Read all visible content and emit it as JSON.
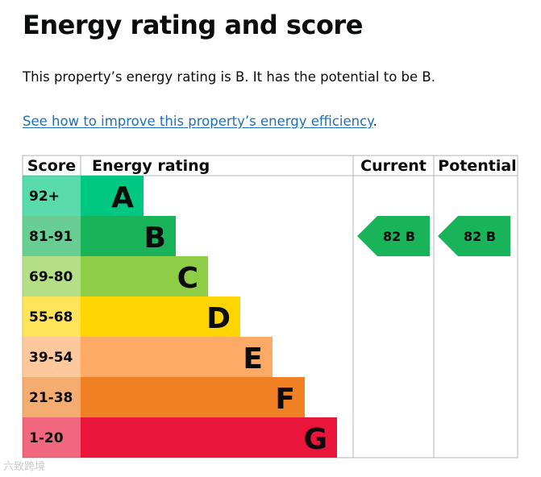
{
  "heading": "Energy rating and score",
  "summary": "This property’s energy rating is B. It has the potential to be B.",
  "improve_link": "See how to improve this property’s energy efficiency",
  "improve_suffix": ".",
  "watermark": "六致跨境",
  "chart_data": {
    "type": "bar",
    "columns": [
      "Score",
      "Energy rating",
      "Current",
      "Potential"
    ],
    "bands": [
      {
        "score": "92+",
        "rating": "A",
        "color": "#00c781"
      },
      {
        "score": "81-91",
        "rating": "B",
        "color": "#19b459"
      },
      {
        "score": "69-80",
        "rating": "C",
        "color": "#8dce46"
      },
      {
        "score": "55-68",
        "rating": "D",
        "color": "#ffd500"
      },
      {
        "score": "39-54",
        "rating": "E",
        "color": "#fcaa65"
      },
      {
        "score": "21-38",
        "rating": "F",
        "color": "#ef8023"
      },
      {
        "score": "1-20",
        "rating": "G",
        "color": "#e9153b"
      }
    ],
    "current": {
      "score": 82,
      "rating": "B",
      "label": "82 B"
    },
    "potential": {
      "score": 82,
      "rating": "B",
      "label": "82 B"
    }
  }
}
